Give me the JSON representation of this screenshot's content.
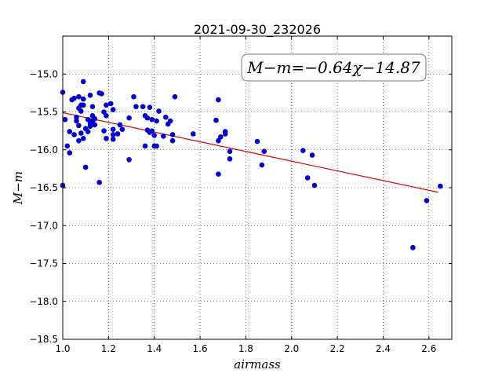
{
  "chart_data": {
    "type": "scatter",
    "title": "2021-09-30_232026",
    "xlabel": "airmass",
    "ylabel": "M−m",
    "xlim": [
      1.0,
      2.7
    ],
    "ylim": [
      -18.5,
      -14.5
    ],
    "x_ticks": [
      1.0,
      1.2,
      1.4,
      1.6,
      1.8,
      2.0,
      2.2,
      2.4,
      2.6
    ],
    "x_tick_labels": [
      "1.0",
      "1.2",
      "1.4",
      "1.6",
      "1.8",
      "2.0",
      "2.2",
      "2.4",
      "2.6"
    ],
    "y_ticks": [
      -15.0,
      -15.5,
      -16.0,
      -16.5,
      -17.0,
      -17.5,
      -18.0,
      -18.5
    ],
    "y_tick_labels": [
      "−15.0",
      "−15.5",
      "−16.0",
      "−16.5",
      "−17.0",
      "−17.5",
      "−18.0",
      "−18.5"
    ],
    "grid": true,
    "annotation": "M−m=−0.64χ−14.87",
    "point_color": "#0000cc",
    "fit_color": "#dd0000",
    "fit": {
      "slope": -0.64,
      "intercept": -14.87,
      "x_range": [
        1.0,
        2.64
      ]
    },
    "points": [
      [
        1.0,
        -15.24
      ],
      [
        1.01,
        -15.6
      ],
      [
        1.0,
        -16.47
      ],
      [
        1.02,
        -15.95
      ],
      [
        1.03,
        -16.04
      ],
      [
        1.03,
        -15.76
      ],
      [
        1.04,
        -15.34
      ],
      [
        1.05,
        -15.32
      ],
      [
        1.05,
        -15.8
      ],
      [
        1.06,
        -15.62
      ],
      [
        1.06,
        -15.57
      ],
      [
        1.07,
        -15.68
      ],
      [
        1.07,
        -15.88
      ],
      [
        1.07,
        -15.3
      ],
      [
        1.07,
        -15.45
      ],
      [
        1.08,
        -15.41
      ],
      [
        1.08,
        -15.49
      ],
      [
        1.08,
        -15.78
      ],
      [
        1.09,
        -15.85
      ],
      [
        1.09,
        -15.41
      ],
      [
        1.09,
        -15.33
      ],
      [
        1.09,
        -15.1
      ],
      [
        1.1,
        -15.72
      ],
      [
        1.1,
        -16.23
      ],
      [
        1.11,
        -15.76
      ],
      [
        1.11,
        -15.6
      ],
      [
        1.12,
        -15.28
      ],
      [
        1.12,
        -15.65
      ],
      [
        1.12,
        -15.69
      ],
      [
        1.13,
        -15.43
      ],
      [
        1.13,
        -15.55
      ],
      [
        1.13,
        -15.62
      ],
      [
        1.14,
        -15.59
      ],
      [
        1.14,
        -15.67
      ],
      [
        1.16,
        -15.25
      ],
      [
        1.17,
        -15.26
      ],
      [
        1.16,
        -16.43
      ],
      [
        1.18,
        -15.5
      ],
      [
        1.18,
        -15.75
      ],
      [
        1.19,
        -15.41
      ],
      [
        1.19,
        -15.55
      ],
      [
        1.19,
        -15.85
      ],
      [
        1.21,
        -15.39
      ],
      [
        1.22,
        -15.47
      ],
      [
        1.22,
        -15.8
      ],
      [
        1.22,
        -15.86
      ],
      [
        1.22,
        -15.73
      ],
      [
        1.24,
        -15.79
      ],
      [
        1.25,
        -15.67
      ],
      [
        1.26,
        -15.73
      ],
      [
        1.29,
        -15.58
      ],
      [
        1.29,
        -16.13
      ],
      [
        1.31,
        -15.3
      ],
      [
        1.32,
        -15.43
      ],
      [
        1.35,
        -15.43
      ],
      [
        1.36,
        -15.55
      ],
      [
        1.36,
        -15.95
      ],
      [
        1.37,
        -15.58
      ],
      [
        1.37,
        -15.74
      ],
      [
        1.38,
        -15.44
      ],
      [
        1.38,
        -15.77
      ],
      [
        1.39,
        -15.75
      ],
      [
        1.39,
        -15.6
      ],
      [
        1.4,
        -15.95
      ],
      [
        1.4,
        -15.81
      ],
      [
        1.41,
        -15.62
      ],
      [
        1.41,
        -15.95
      ],
      [
        1.42,
        -15.49
      ],
      [
        1.44,
        -15.82
      ],
      [
        1.45,
        -15.57
      ],
      [
        1.46,
        -15.66
      ],
      [
        1.47,
        -15.62
      ],
      [
        1.48,
        -15.88
      ],
      [
        1.48,
        -15.8
      ],
      [
        1.49,
        -15.3
      ],
      [
        1.57,
        -15.79
      ],
      [
        1.67,
        -15.61
      ],
      [
        1.68,
        -15.34
      ],
      [
        1.68,
        -15.88
      ],
      [
        1.68,
        -16.32
      ],
      [
        1.69,
        -15.83
      ],
      [
        1.71,
        -15.76
      ],
      [
        1.71,
        -15.79
      ],
      [
        1.73,
        -16.02
      ],
      [
        1.73,
        -16.12
      ],
      [
        1.85,
        -15.89
      ],
      [
        1.87,
        -16.2
      ],
      [
        1.88,
        -16.02
      ],
      [
        2.05,
        -16.01
      ],
      [
        2.07,
        -16.37
      ],
      [
        2.09,
        -16.07
      ],
      [
        2.1,
        -16.47
      ],
      [
        2.53,
        -17.29
      ],
      [
        2.59,
        -16.67
      ],
      [
        2.65,
        -16.48
      ]
    ]
  }
}
